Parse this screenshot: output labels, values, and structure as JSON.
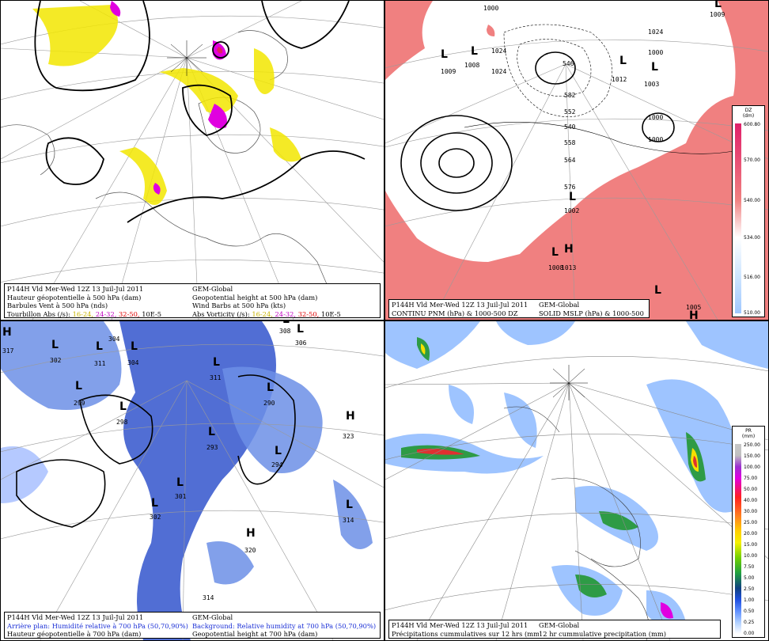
{
  "panels": {
    "tl": {
      "line1_fr": "P144H Vld Mer-Wed 12Z 13 Juil-Jul 2011",
      "line1_en": "GEM-Global",
      "line2_fr": "Hauteur géopotentielle à 500 hPa (dam)",
      "line2_en": "Geopotential height at 500 hPa (dam)",
      "line3_fr": "Barbules Vent à 500 hPa (nds)",
      "line3_en": "Wind Barbs at 500 hPa  (kts)",
      "line4_fr_prefix": "Tourbillon Abs (/s):",
      "line4_en_prefix": "Abs Vorticity (/s):",
      "range1": "16-24,",
      "range2": "24-32,",
      "range3": "32-50,",
      "units": "10E-5"
    },
    "tr": {
      "line1_fr": "P144H Vld Mer-Wed 12Z 13 Juil-Jul 2011",
      "line1_en": "GEM-Global",
      "line2_fr": "CONTINU PNM  (hPa) & 1000-500 DZ",
      "line2_en": "SOLID  MSLP (hPa) & 1000-500 DZ",
      "legend_title": "DZ",
      "legend_unit": "(dm)",
      "legend_ticks": [
        "600.80",
        "570.00",
        "540.00",
        "534.00",
        "516.00",
        "510.00"
      ],
      "labels": [
        "1000",
        "1009",
        "1008",
        "1024",
        "1024",
        "546",
        "1012",
        "1003",
        "1024",
        "1000",
        "1000",
        "540",
        "552",
        "558",
        "564",
        "1000",
        "576",
        "582",
        "1002",
        "1008",
        "1013",
        "1005",
        "1009",
        "1024",
        "1008"
      ],
      "symbols": [
        "L",
        "L",
        "L",
        "L",
        "L",
        "L",
        "L",
        "H",
        "H",
        "L"
      ]
    },
    "bl": {
      "line1_fr": "P144H Vld Mer-Wed 12Z 13 Juil-Jul 2011",
      "line1_en": "GEM-Global",
      "line2_fr": "Arrière plan: Humidité relative à 700 hPa (50,70,90%)",
      "line2_en": "Background: Relative humidity at 700 hPa (50,70,90%)",
      "line3_fr": "Hauteur géopotentielle à 700 hPa (dam)",
      "line3_en": "Geopotential height at 700 hPa (dam)",
      "labels": [
        "317",
        "302",
        "311",
        "304",
        "304",
        "308",
        "306",
        "299",
        "298",
        "311",
        "290",
        "323",
        "293",
        "294",
        "301",
        "302",
        "314",
        "320",
        "314"
      ],
      "symbols": [
        "H",
        "L",
        "L",
        "L",
        "L",
        "L",
        "L",
        "L",
        "L",
        "H",
        "L",
        "L",
        "L",
        "L",
        "L",
        "H",
        "L"
      ]
    },
    "br": {
      "line1_fr": "P144H Vld Mer-Wed 12Z 13 Juil-Jul 2011",
      "line1_en": "GEM-Global",
      "line2_fr": "Précipitations cummulatives sur 12 hrs (mm)",
      "line2_en": "12 hr cummulative precipitation      (mm)",
      "legend_title": "PR",
      "legend_unit": "(mm)",
      "legend_ticks": [
        "250.00",
        "150.00",
        "100.00",
        "75.00",
        "50.00",
        "40.00",
        "30.00",
        "25.00",
        "20.00",
        "15.00",
        "10.00",
        "7.50",
        "5.00",
        "2.50",
        "1.00",
        "0.50",
        "0.25",
        "0.00"
      ]
    }
  },
  "colors": {
    "thickness_fill": "#f08080",
    "rh_fill": "#3355cc",
    "vorticity_yellow": "#f2e600",
    "vorticity_magenta": "#e000e0",
    "vorticity_red": "#e02060"
  }
}
